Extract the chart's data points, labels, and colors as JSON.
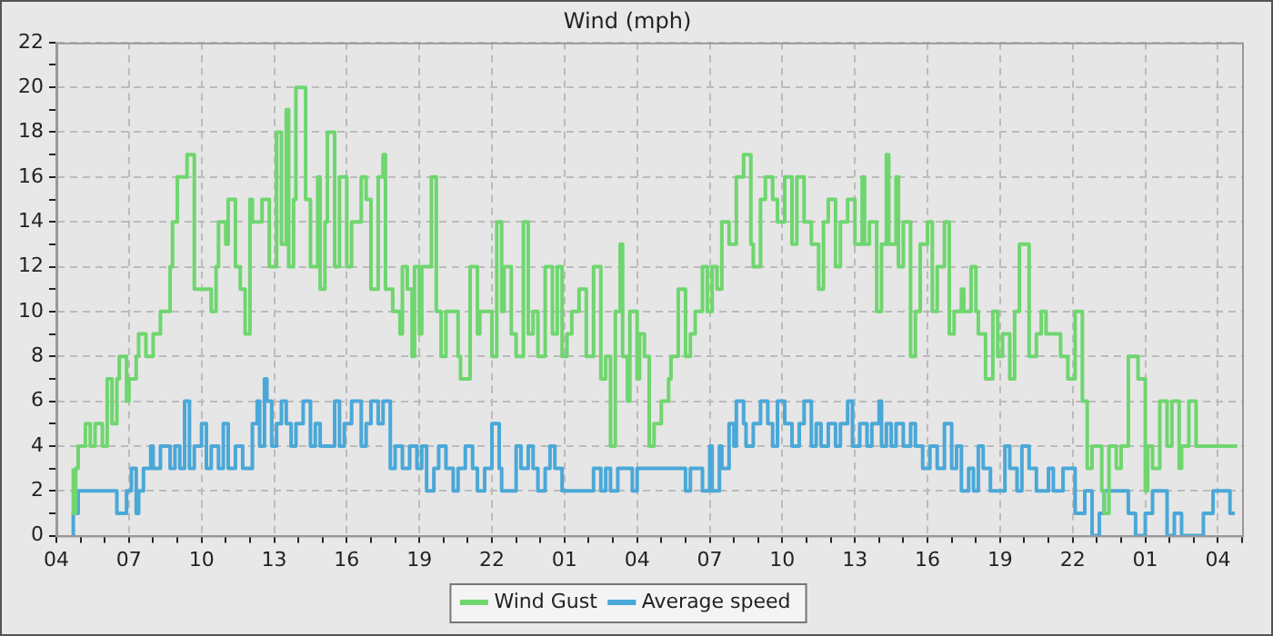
{
  "chart_data": {
    "type": "step",
    "title": "Wind (mph)",
    "legend": "bottom",
    "grid": true,
    "line_style": "solid",
    "marker": "none",
    "xlim": [
      "--01-01T04:00",
      "--01-03T05:00"
    ],
    "ylim": [
      0,
      22
    ],
    "yticks": [
      0,
      {
        "value": 1,
        "label": null
      },
      2,
      {
        "value": 3,
        "label": null
      },
      4,
      {
        "value": 5,
        "label": null
      },
      6,
      {
        "value": 7,
        "label": null
      },
      8,
      {
        "value": 9,
        "label": null
      },
      10,
      {
        "value": 11,
        "label": null
      },
      12,
      {
        "value": 13,
        "label": null
      },
      14,
      {
        "value": 15,
        "label": null
      },
      16,
      {
        "value": 17,
        "label": null
      },
      18,
      {
        "value": 19,
        "label": null
      },
      20,
      {
        "value": 21,
        "label": null
      },
      22
    ],
    "xticks": [
      {
        "value": "--01-01T04:00",
        "label": "04"
      },
      {
        "value": "--01-01T05:00",
        "label": null
      },
      {
        "value": "--01-01T06:00",
        "label": null
      },
      {
        "value": "--01-01T07:00",
        "label": "07"
      },
      {
        "value": "--01-01T08:00",
        "label": null
      },
      {
        "value": "--01-01T09:00",
        "label": null
      },
      {
        "value": "--01-01T10:00",
        "label": "10"
      },
      {
        "value": "--01-01T11:00",
        "label": null
      },
      {
        "value": "--01-01T12:00",
        "label": null
      },
      {
        "value": "--01-01T13:00",
        "label": "13"
      },
      {
        "value": "--01-01T14:00",
        "label": null
      },
      {
        "value": "--01-01T15:00",
        "label": null
      },
      {
        "value": "--01-01T16:00",
        "label": "16"
      },
      {
        "value": "--01-01T17:00",
        "label": null
      },
      {
        "value": "--01-01T18:00",
        "label": null
      },
      {
        "value": "--01-01T19:00",
        "label": "19"
      },
      {
        "value": "--01-01T20:00",
        "label": null
      },
      {
        "value": "--01-01T21:00",
        "label": null
      },
      {
        "value": "--01-01T22:00",
        "label": "22"
      },
      {
        "value": "--01-01T23:00",
        "label": null
      },
      {
        "value": "--01-02T00:00",
        "label": null
      },
      {
        "value": "--01-02T01:00",
        "label": "01"
      },
      {
        "value": "--01-02T02:00",
        "label": null
      },
      {
        "value": "--01-02T03:00",
        "label": null
      },
      {
        "value": "--01-02T04:00",
        "label": "04"
      },
      {
        "value": "--01-02T05:00",
        "label": null
      },
      {
        "value": "--01-02T06:00",
        "label": null
      },
      {
        "value": "--01-02T07:00",
        "label": "07"
      },
      {
        "value": "--01-02T08:00",
        "label": null
      },
      {
        "value": "--01-02T09:00",
        "label": null
      },
      {
        "value": "--01-02T10:00",
        "label": "10"
      },
      {
        "value": "--01-02T11:00",
        "label": null
      },
      {
        "value": "--01-02T12:00",
        "label": null
      },
      {
        "value": "--01-02T13:00",
        "label": "13"
      },
      {
        "value": "--01-02T14:00",
        "label": null
      },
      {
        "value": "--01-02T15:00",
        "label": null
      },
      {
        "value": "--01-02T16:00",
        "label": "16"
      },
      {
        "value": "--01-02T17:00",
        "label": null
      },
      {
        "value": "--01-02T18:00",
        "label": null
      },
      {
        "value": "--01-02T19:00",
        "label": "19"
      },
      {
        "value": "--01-02T20:00",
        "label": null
      },
      {
        "value": "--01-02T21:00",
        "label": null
      },
      {
        "value": "--01-02T22:00",
        "label": "22"
      },
      {
        "value": "--01-02T23:00",
        "label": null
      },
      {
        "value": "--01-03T00:00",
        "label": null
      },
      {
        "value": "--01-03T01:00",
        "label": "01"
      },
      {
        "value": "--01-03T02:00",
        "label": null
      },
      {
        "value": "--01-03T03:00",
        "label": null
      },
      {
        "value": "--01-03T04:00",
        "label": "04"
      },
      {
        "value": "--01-03T05:00",
        "label": null
      }
    ],
    "series": [
      {
        "name": "Wind Gust",
        "color": "#6fd66f",
        "x": [
          "--01-01T04:42",
          "--01-01T04:48",
          "--01-01T04:54",
          "--01-01T05:12",
          "--01-01T05:24",
          "--01-01T05:36",
          "--01-01T05:54",
          "--01-01T06:06",
          "--01-01T06:18",
          "--01-01T06:30",
          "--01-01T06:36",
          "--01-01T06:54",
          "--01-01T07:00",
          "--01-01T07:18",
          "--01-01T07:24",
          "--01-01T07:42",
          "--01-01T08:00",
          "--01-01T08:18",
          "--01-01T08:42",
          "--01-01T08:48",
          "--01-01T09:00",
          "--01-01T09:24",
          "--01-01T09:42",
          "--01-01T09:48",
          "--01-01T10:24",
          "--01-01T10:36",
          "--01-01T10:42",
          "--01-01T11:00",
          "--01-01T11:06",
          "--01-01T11:24",
          "--01-01T11:36",
          "--01-01T11:48",
          "--01-01T12:00",
          "--01-01T12:06",
          "--01-01T12:30",
          "--01-01T12:48",
          "--01-01T13:06",
          "--01-01T13:18",
          "--01-01T13:30",
          "--01-01T13:36",
          "--01-01T13:48",
          "--01-01T13:54",
          "--01-01T14:18",
          "--01-01T14:30",
          "--01-01T14:48",
          "--01-01T14:54",
          "--01-01T15:06",
          "--01-01T15:12",
          "--01-01T15:30",
          "--01-01T15:42",
          "--01-01T16:00",
          "--01-01T16:12",
          "--01-01T16:36",
          "--01-01T16:48",
          "--01-01T17:00",
          "--01-01T17:18",
          "--01-01T17:30",
          "--01-01T17:36",
          "--01-01T17:54",
          "--01-01T18:12",
          "--01-01T18:18",
          "--01-01T18:30",
          "--01-01T18:42",
          "--01-01T18:48",
          "--01-01T19:00",
          "--01-01T19:06",
          "--01-01T19:30",
          "--01-01T19:42",
          "--01-01T19:54",
          "--01-01T20:06",
          "--01-01T20:36",
          "--01-01T20:42",
          "--01-01T21:06",
          "--01-01T21:24",
          "--01-01T21:30",
          "--01-01T22:00",
          "--01-01T22:12",
          "--01-01T22:24",
          "--01-01T22:30",
          "--01-01T22:48",
          "--01-01T23:00",
          "--01-01T23:18",
          "--01-01T23:30",
          "--01-01T23:42",
          "--01-01T23:54",
          "--01-02T00:12",
          "--01-02T00:30",
          "--01-02T00:42",
          "--01-02T00:54",
          "--01-02T01:06",
          "--01-02T01:18",
          "--01-02T01:36",
          "--01-02T01:54",
          "--01-02T02:12",
          "--01-02T02:30",
          "--01-02T02:42",
          "--01-02T02:54",
          "--01-02T03:06",
          "--01-02T03:18",
          "--01-02T03:24",
          "--01-02T03:36",
          "--01-02T03:42",
          "--01-02T04:00",
          "--01-02T04:06",
          "--01-02T04:18",
          "--01-02T04:30",
          "--01-02T04:42",
          "--01-02T05:00",
          "--01-02T05:18",
          "--01-02T05:24",
          "--01-02T05:42",
          "--01-02T06:00",
          "--01-02T06:12",
          "--01-02T06:24",
          "--01-02T06:42",
          "--01-02T06:54",
          "--01-02T07:06",
          "--01-02T07:18",
          "--01-02T07:30",
          "--01-02T07:48",
          "--01-02T08:06",
          "--01-02T08:24",
          "--01-02T08:42",
          "--01-02T08:48",
          "--01-02T09:06",
          "--01-02T09:18",
          "--01-02T09:36",
          "--01-02T09:48",
          "--01-02T10:06",
          "--01-02T10:24",
          "--01-02T10:36",
          "--01-02T10:54",
          "--01-02T11:12",
          "--01-02T11:30",
          "--01-02T11:42",
          "--01-02T11:54",
          "--01-02T12:12",
          "--01-02T12:24",
          "--01-02T12:42",
          "--01-02T13:00",
          "--01-02T13:18",
          "--01-02T13:24",
          "--01-02T13:36",
          "--01-02T13:54",
          "--01-02T14:06",
          "--01-02T14:18",
          "--01-02T14:24",
          "--01-02T14:42",
          "--01-02T14:48",
          "--01-02T15:00",
          "--01-02T15:18",
          "--01-02T15:30",
          "--01-02T15:42",
          "--01-02T16:00",
          "--01-02T16:12",
          "--01-02T16:24",
          "--01-02T16:42",
          "--01-02T16:54",
          "--01-02T17:06",
          "--01-02T17:24",
          "--01-02T17:30",
          "--01-02T17:48",
          "--01-02T18:00",
          "--01-02T18:06",
          "--01-02T18:24",
          "--01-02T18:42",
          "--01-02T18:54",
          "--01-02T19:06",
          "--01-02T19:24",
          "--01-02T19:36",
          "--01-02T19:48",
          "--01-02T20:12",
          "--01-02T20:30",
          "--01-02T20:42",
          "--01-02T20:54",
          "--01-02T21:30",
          "--01-02T21:48",
          "--01-02T22:06",
          "--01-02T22:24",
          "--01-02T22:36",
          "--01-02T22:48",
          "--01-02T23:12",
          "--01-02T23:18",
          "--01-02T23:30",
          "--01-02T23:48",
          "--01-03T00:00",
          "--01-03T00:18",
          "--01-03T00:42",
          "--01-03T01:00",
          "--01-03T01:06",
          "--01-03T01:18",
          "--01-03T01:36",
          "--01-03T01:54",
          "--01-03T02:06",
          "--01-03T02:24",
          "--01-03T02:30",
          "--01-03T02:48",
          "--01-03T03:06",
          "--01-03T03:30",
          "--01-03T04:48"
        ],
        "values": [
          3,
          1,
          3,
          4,
          5,
          4,
          5,
          4,
          7,
          5,
          7,
          8,
          6,
          7,
          8,
          9,
          8,
          9,
          10,
          12,
          14,
          16,
          17,
          11,
          11,
          10,
          12,
          14,
          13,
          15,
          12,
          11,
          9,
          15,
          14,
          15,
          12,
          18,
          13,
          19,
          12,
          15,
          20,
          15,
          12,
          16,
          11,
          14,
          18,
          12,
          16,
          12,
          14,
          16,
          15,
          11,
          16,
          17,
          11,
          10,
          9,
          12,
          11,
          8,
          12,
          9,
          12,
          16,
          10,
          8,
          10,
          8,
          7,
          12,
          9,
          10,
          8,
          14,
          10,
          12,
          9,
          8,
          14,
          9,
          10,
          8,
          12,
          9,
          12,
          8,
          9,
          10,
          11,
          8,
          12,
          7,
          8,
          4,
          10,
          13,
          8,
          6,
          10,
          7,
          9,
          8,
          4,
          5,
          6,
          7,
          8,
          11,
          8,
          9,
          10,
          12,
          10,
          12,
          11,
          14,
          13,
          16,
          17,
          13,
          12,
          15,
          16,
          15,
          14,
          16,
          13,
          16,
          14,
          13,
          11,
          14,
          15,
          12,
          14,
          15,
          13,
          16,
          13,
          14,
          10,
          13,
          17,
          13,
          16,
          12,
          14,
          8,
          10,
          13,
          14,
          10,
          12,
          14,
          9,
          10,
          11,
          10,
          12,
          10,
          9,
          7,
          10,
          8,
          9,
          7,
          10,
          13,
          8,
          9,
          10,
          9,
          8,
          7,
          10,
          6,
          3,
          4,
          2,
          1,
          4,
          3,
          4,
          8,
          7,
          2,
          4,
          3,
          6,
          4,
          6,
          3,
          4,
          6,
          4,
          4
        ]
      },
      {
        "name": "Average speed",
        "color": "#4aa8d8",
        "x": [
          "--01-01T04:42",
          "--01-01T04:54",
          "--01-01T06:30",
          "--01-01T06:54",
          "--01-01T07:06",
          "--01-01T07:18",
          "--01-01T07:24",
          "--01-01T07:36",
          "--01-01T07:54",
          "--01-01T08:00",
          "--01-01T08:18",
          "--01-01T08:42",
          "--01-01T08:54",
          "--01-01T09:06",
          "--01-01T09:18",
          "--01-01T09:30",
          "--01-01T09:42",
          "--01-01T10:00",
          "--01-01T10:12",
          "--01-01T10:24",
          "--01-01T10:42",
          "--01-01T10:54",
          "--01-01T11:06",
          "--01-01T11:24",
          "--01-01T11:42",
          "--01-01T12:06",
          "--01-01T12:18",
          "--01-01T12:24",
          "--01-01T12:36",
          "--01-01T12:42",
          "--01-01T12:54",
          "--01-01T13:06",
          "--01-01T13:18",
          "--01-01T13:30",
          "--01-01T13:42",
          "--01-01T13:54",
          "--01-01T14:12",
          "--01-01T14:30",
          "--01-01T14:42",
          "--01-01T14:54",
          "--01-01T15:30",
          "--01-01T15:42",
          "--01-01T15:54",
          "--01-01T16:12",
          "--01-01T16:36",
          "--01-01T16:48",
          "--01-01T17:00",
          "--01-01T17:18",
          "--01-01T17:30",
          "--01-01T17:48",
          "--01-01T18:00",
          "--01-01T18:18",
          "--01-01T18:36",
          "--01-01T18:54",
          "--01-01T19:06",
          "--01-01T19:18",
          "--01-01T19:36",
          "--01-01T19:48",
          "--01-01T20:06",
          "--01-01T20:24",
          "--01-01T20:36",
          "--01-01T20:54",
          "--01-01T21:12",
          "--01-01T21:24",
          "--01-01T21:42",
          "--01-01T22:00",
          "--01-01T22:18",
          "--01-01T22:24",
          "--01-01T23:00",
          "--01-01T23:12",
          "--01-01T23:30",
          "--01-01T23:42",
          "--01-01T23:54",
          "--01-02T00:12",
          "--01-02T00:24",
          "--01-02T00:36",
          "--01-02T00:54",
          "--01-02T02:12",
          "--01-02T02:30",
          "--01-02T02:42",
          "--01-02T02:54",
          "--01-02T03:12",
          "--01-02T03:48",
          "--01-02T04:00",
          "--01-02T06:00",
          "--01-02T06:12",
          "--01-02T06:42",
          "--01-02T07:00",
          "--01-02T07:06",
          "--01-02T07:24",
          "--01-02T07:30",
          "--01-02T07:48",
          "--01-02T08:00",
          "--01-02T08:06",
          "--01-02T08:24",
          "--01-02T08:30",
          "--01-02T08:48",
          "--01-02T09:06",
          "--01-02T09:24",
          "--01-02T09:36",
          "--01-02T09:48",
          "--01-02T10:06",
          "--01-02T10:24",
          "--01-02T10:42",
          "--01-02T10:54",
          "--01-02T11:12",
          "--01-02T11:24",
          "--01-02T11:36",
          "--01-02T11:54",
          "--01-02T12:12",
          "--01-02T12:24",
          "--01-02T12:42",
          "--01-02T12:54",
          "--01-02T13:12",
          "--01-02T13:30",
          "--01-02T13:42",
          "--01-02T14:00",
          "--01-02T14:06",
          "--01-02T14:18",
          "--01-02T14:30",
          "--01-02T14:42",
          "--01-02T15:00",
          "--01-02T15:18",
          "--01-02T15:30",
          "--01-02T15:48",
          "--01-02T16:06",
          "--01-02T16:24",
          "--01-02T16:42",
          "--01-02T17:00",
          "--01-02T17:12",
          "--01-02T17:24",
          "--01-02T17:42",
          "--01-02T17:54",
          "--01-02T18:06",
          "--01-02T18:18",
          "--01-02T18:36",
          "--01-02T19:12",
          "--01-02T19:24",
          "--01-02T19:42",
          "--01-02T19:54",
          "--01-02T20:12",
          "--01-02T20:30",
          "--01-02T21:00",
          "--01-02T21:12",
          "--01-02T21:36",
          "--01-02T22:06",
          "--01-02T22:30",
          "--01-02T22:48",
          "--01-02T23:06",
          "--01-02T23:18",
          "--01-03T00:18",
          "--01-03T00:36",
          "--01-03T01:00",
          "--01-03T01:18",
          "--01-03T01:54",
          "--01-03T02:12",
          "--01-03T02:30",
          "--01-03T03:24",
          "--01-03T03:48",
          "--01-03T04:30",
          "--01-03T04:42"
        ],
        "values": [
          0,
          1,
          2,
          1,
          2,
          3,
          1,
          2,
          3,
          4,
          3,
          4,
          3,
          4,
          3,
          6,
          3,
          4,
          5,
          3,
          4,
          3,
          5,
          3,
          4,
          3,
          5,
          6,
          4,
          7,
          6,
          4,
          5,
          6,
          5,
          4,
          5,
          6,
          4,
          5,
          4,
          6,
          4,
          5,
          6,
          4,
          5,
          6,
          5,
          6,
          3,
          4,
          3,
          4,
          3,
          4,
          2,
          3,
          4,
          3,
          2,
          3,
          4,
          3,
          2,
          3,
          5,
          3,
          2,
          4,
          3,
          4,
          3,
          2,
          3,
          4,
          3,
          2,
          3,
          2,
          3,
          2,
          3,
          2,
          3,
          2,
          3,
          2,
          4,
          2,
          4,
          3,
          5,
          4,
          6,
          5,
          4,
          5,
          6,
          5,
          4,
          6,
          5,
          4,
          5,
          6,
          4,
          5,
          4,
          5,
          4,
          5,
          6,
          4,
          5,
          4,
          5,
          6,
          4,
          5,
          4,
          5,
          4,
          5,
          4,
          3,
          4,
          3,
          5,
          3,
          4,
          2,
          3,
          2,
          4,
          3,
          2,
          4,
          3,
          2,
          4,
          3,
          2,
          3,
          2,
          3,
          1,
          2,
          0,
          1,
          2,
          1,
          0,
          1,
          2,
          0,
          1,
          0,
          1,
          2,
          1
        ]
      }
    ]
  }
}
